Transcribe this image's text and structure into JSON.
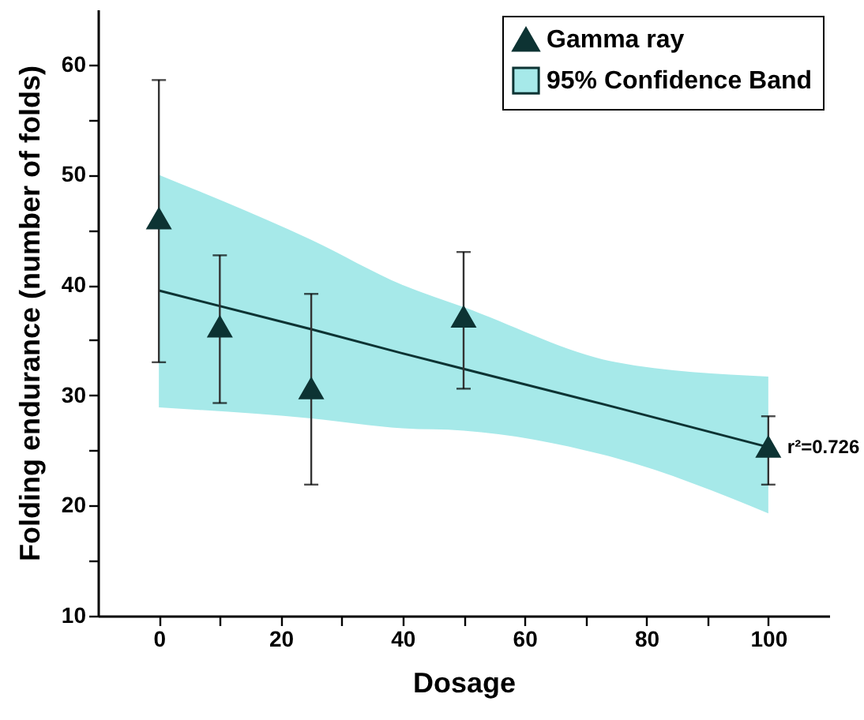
{
  "chart_data": {
    "type": "scatter",
    "xlabel": "Dosage",
    "ylabel": "Folding endurance (number of folds)",
    "xlim": [
      -10,
      110
    ],
    "ylim": [
      10,
      65
    ],
    "xticks": [
      0,
      20,
      40,
      60,
      80,
      100,
      {
        "value": 10,
        "label": null
      },
      {
        "value": 30,
        "label": null
      },
      {
        "value": 50,
        "label": null
      },
      {
        "value": 70,
        "label": null
      },
      {
        "value": 90,
        "label": null
      }
    ],
    "yticks": [
      10,
      20,
      30,
      40,
      50,
      60,
      {
        "value": 15,
        "label": null
      },
      {
        "value": 25,
        "label": null
      },
      {
        "value": 35,
        "label": null
      },
      {
        "value": 45,
        "label": null
      },
      {
        "value": 55,
        "label": null
      }
    ],
    "grid": false,
    "legend": "top right",
    "marker": "triangle",
    "series": [
      {
        "name": "Gamma ray",
        "color": "#0d3333",
        "x": [
          0,
          10,
          25,
          50,
          100
        ],
        "values": [
          46,
          36.2,
          30.6,
          37.1,
          25.3
        ],
        "errors": [
          [
            33.0,
            58.6
          ],
          [
            29.3,
            42.7
          ],
          [
            21.9,
            39.2
          ],
          [
            30.6,
            43.0
          ],
          [
            21.9,
            28.1
          ]
        ]
      },
      {
        "type": "line",
        "name": "95% Confidence Band",
        "color": "#0d3333",
        "marker": "none",
        "x": [
          0,
          25,
          40,
          50,
          75,
          100
        ],
        "values": [
          39.5,
          36.0,
          33.8,
          32.4,
          28.9,
          25.3
        ],
        "lower": [
          28.9,
          27.9,
          27.0,
          26.8,
          24.3,
          19.3
        ],
        "upper": [
          50.0,
          44.1,
          40.0,
          38.0,
          33.0,
          31.7
        ]
      }
    ],
    "annotations": [
      {
        "text": "r²=0.726",
        "x": 100,
        "y": 25.3
      }
    ]
  }
}
